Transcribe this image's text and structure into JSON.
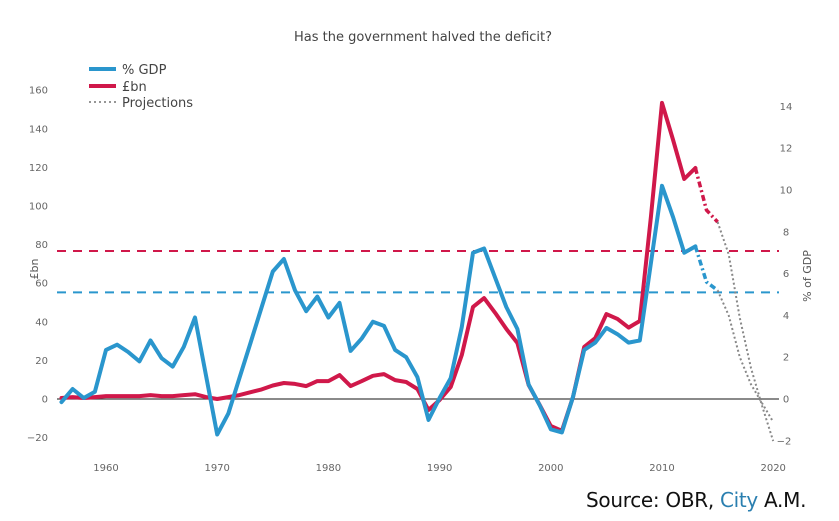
{
  "chart_data": {
    "type": "line",
    "title": "Has the government halved the deficit?",
    "xlabel": "",
    "ylabel_left": "£bn",
    "ylabel_right": "% of GDP",
    "xlim": [
      1955.5,
      2020.5
    ],
    "ylim_left": [
      -20,
      160
    ],
    "ylim_right": [
      -2,
      14
    ],
    "x_ticks": [
      1960,
      1970,
      1980,
      1990,
      2000,
      2010,
      2020
    ],
    "y_ticks_left": [
      -20,
      0,
      20,
      40,
      60,
      80,
      100,
      120,
      140,
      160
    ],
    "y_ticks_right": [
      -2,
      0,
      2,
      4,
      6,
      8,
      10,
      12,
      14
    ],
    "grid": false,
    "zero_line": true,
    "legend": {
      "position": "top-left",
      "entries": [
        {
          "label": "% GDP",
          "style": "solid",
          "color": "#2a96cd"
        },
        {
          "label": "£bn",
          "style": "solid",
          "color": "#d0184a"
        },
        {
          "label": "Projections",
          "style": "dotted",
          "color": "#888888"
        }
      ]
    },
    "series": [
      {
        "name": "% GDP",
        "axis": "right",
        "color": "#2a96cd",
        "years": [
          1956,
          1957,
          1958,
          1959,
          1960,
          1961,
          1962,
          1963,
          1964,
          1965,
          1966,
          1967,
          1968,
          1969,
          1970,
          1971,
          1972,
          1973,
          1974,
          1975,
          1976,
          1977,
          1978,
          1979,
          1980,
          1981,
          1982,
          1983,
          1984,
          1985,
          1986,
          1987,
          1988,
          1989,
          1990,
          1991,
          1992,
          1993,
          1994,
          1995,
          1996,
          1997,
          1998,
          1999,
          2000,
          2001,
          2002,
          2003,
          2004,
          2005,
          2006,
          2007,
          2008,
          2009,
          2010,
          2011,
          2012,
          2013
        ],
        "values": [
          -0.15,
          0.48,
          0.05,
          0.35,
          2.35,
          2.6,
          2.25,
          1.8,
          2.8,
          1.95,
          1.55,
          2.5,
          3.9,
          1.1,
          -1.7,
          -0.7,
          1.0,
          2.7,
          4.4,
          6.1,
          6.7,
          5.2,
          4.2,
          4.9,
          3.9,
          4.6,
          2.3,
          2.9,
          3.7,
          3.5,
          2.35,
          2.0,
          1.05,
          -1.0,
          0.05,
          1.0,
          3.45,
          7.0,
          7.2,
          5.8,
          4.4,
          3.35,
          0.7,
          -0.3,
          -1.45,
          -1.6,
          0.1,
          2.35,
          2.7,
          3.4,
          3.1,
          2.7,
          2.8,
          6.5,
          10.2,
          8.7,
          7.0,
          7.3
        ],
        "projection_years": [
          2013,
          2014,
          2015,
          2016,
          2017,
          2018,
          2019,
          2020
        ],
        "projection_values": [
          7.3,
          5.6,
          5.2,
          4.0,
          2.0,
          0.7,
          -0.2,
          -1.1
        ],
        "projection_colored_until": 2015,
        "halfway_line": 5.1
      },
      {
        "name": "£bn",
        "axis": "left",
        "color": "#d0184a",
        "years": [
          1956,
          1957,
          1958,
          1959,
          1960,
          1961,
          1962,
          1963,
          1964,
          1965,
          1966,
          1967,
          1968,
          1969,
          1970,
          1971,
          1972,
          1973,
          1974,
          1975,
          1976,
          1977,
          1978,
          1979,
          1980,
          1981,
          1982,
          1983,
          1984,
          1985,
          1986,
          1987,
          1988,
          1989,
          1990,
          1991,
          1992,
          1993,
          1994,
          1995,
          1996,
          1997,
          1998,
          1999,
          2000,
          2001,
          2002,
          2003,
          2004,
          2005,
          2006,
          2007,
          2008,
          2009,
          2010,
          2011,
          2012,
          2013
        ],
        "values": [
          0.5,
          1,
          0.5,
          1,
          1.5,
          1.5,
          1.5,
          1.5,
          2,
          1.5,
          1.5,
          2,
          2.5,
          1,
          0,
          1,
          2,
          3.5,
          5,
          7,
          8.3,
          7.8,
          6.7,
          9.3,
          9.3,
          12.4,
          6.7,
          9.3,
          12,
          12.9,
          9.8,
          8.8,
          5.2,
          -5.7,
          -0.5,
          6.2,
          22.8,
          47.7,
          52.3,
          44.6,
          36.3,
          29,
          7.3,
          -3.1,
          -14,
          -16.5,
          1,
          27,
          31.6,
          44,
          41.5,
          37,
          40.4,
          94.3,
          153.4,
          134.2,
          114,
          119.7
        ],
        "projection_years": [
          2013,
          2014,
          2015,
          2016,
          2017,
          2018,
          2019,
          2020
        ],
        "projection_values": [
          119.7,
          97.9,
          91.7,
          75,
          42,
          16,
          -3.6,
          -21.8
        ],
        "projection_colored_until": 2015,
        "halfway_line": 76.7
      }
    ],
    "projection_color": "#888888"
  },
  "source": {
    "prefix": "Source: OBR, ",
    "brand": "City",
    "suffix": " A.M."
  }
}
